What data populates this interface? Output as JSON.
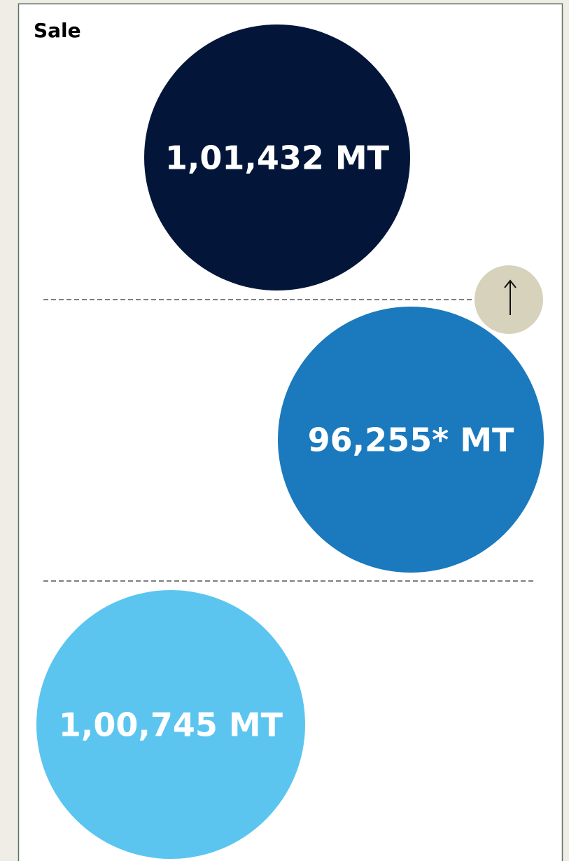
{
  "title": "Sale",
  "items": [
    {
      "label": "1,01,432 MT",
      "color": "#03163a"
    },
    {
      "label": "96,255* MT",
      "color": "#1b79bd"
    },
    {
      "label": "1,00,745 MT",
      "color": "#5bc5f0"
    }
  ]
}
